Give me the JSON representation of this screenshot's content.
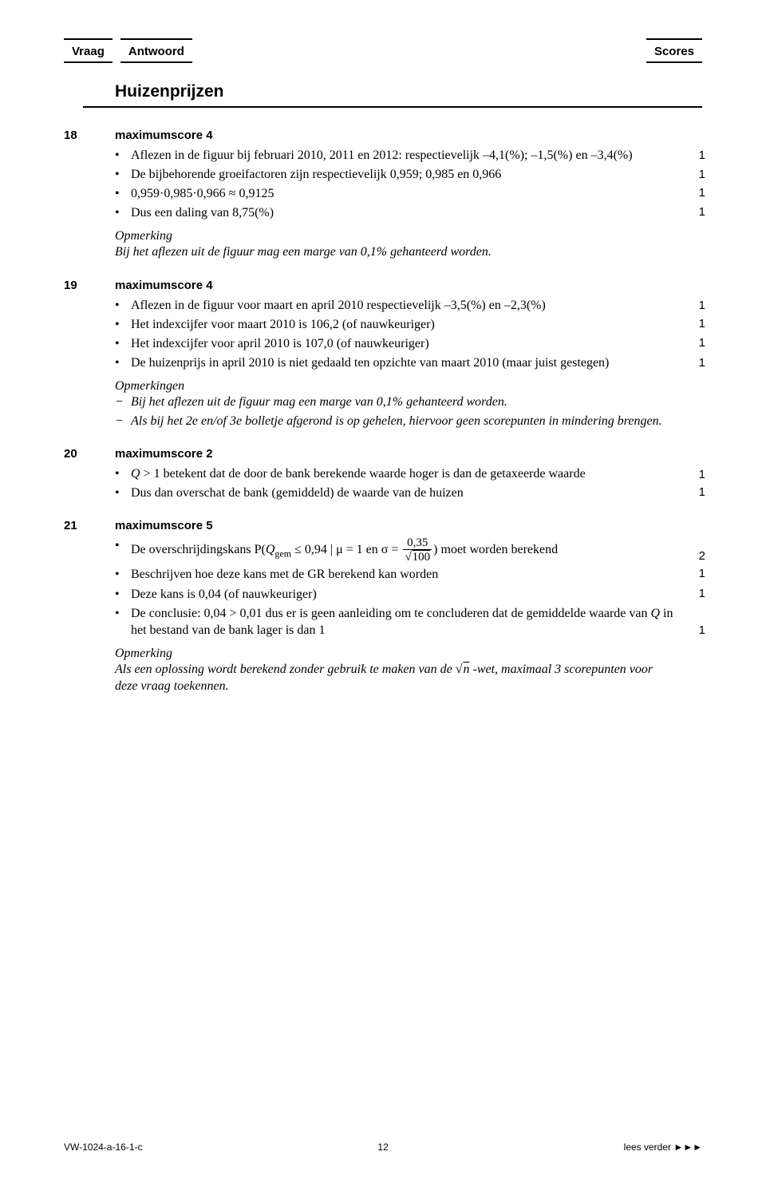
{
  "header": {
    "vraag": "Vraag",
    "antwoord": "Antwoord",
    "scores": "Scores"
  },
  "section_title": "Huizenprijzen",
  "q18": {
    "num": "18",
    "max": "maximumscore 4",
    "b1_full": "Aflezen in de figuur bij februari 2010, 2011 en 2012: respectievelijk –4,1(%); –1,5(%) en –3,4(%)",
    "b1_pts": "1",
    "b2_full": "De bijbehorende groeifactoren zijn respectievelijk 0,959; 0,985 en 0,966",
    "b2_pts": "1",
    "b3": "0,959·0,985·0,966 ≈ 0,9125",
    "b3_pts": "1",
    "b4": "Dus een daling van 8,75(%)",
    "b4_pts": "1",
    "note_head": "Opmerking",
    "note": "Bij het aflezen uit de figuur mag een marge van 0,1% gehanteerd worden."
  },
  "q19": {
    "num": "19",
    "max": "maximumscore 4",
    "b1_full": "Aflezen in de figuur voor maart en april 2010 respectievelijk –3,5(%) en –2,3(%)",
    "b1_pts": "1",
    "b2": "Het indexcijfer voor maart 2010 is 106,2 (of nauwkeuriger)",
    "b2_pts": "1",
    "b3": "Het indexcijfer voor april 2010 is 107,0 (of nauwkeuriger)",
    "b3_pts": "1",
    "b4_full": "De huizenprijs in april 2010 is niet gedaald ten opzichte van maart 2010 (maar juist gestegen)",
    "b4_pts": "1",
    "note_head": "Opmerkingen",
    "n1": "Bij het aflezen uit de figuur mag een marge van 0,1% gehanteerd worden.",
    "n2": "Als bij het 2e en/of 3e bolletje afgerond is op gehelen, hiervoor geen scorepunten in mindering brengen."
  },
  "q20": {
    "num": "20",
    "max": "maximumscore 2",
    "b1_full": "Q > 1 betekent dat de door de bank berekende waarde hoger is dan de getaxeerde waarde",
    "b1_Q": "Q",
    "b1_a": " > 1",
    "b1_b": " betekent dat de door de bank berekende waarde hoger is dan de getaxeerde waarde",
    "b1_pts": "1",
    "b2": "Dus dan overschat de bank (gemiddeld) de waarde van de huizen",
    "b2_pts": "1"
  },
  "q21": {
    "num": "21",
    "max": "maximumscore 5",
    "b1_pre": "De overschrijdingskans P(",
    "b1_Qgem": "Q",
    "b1_gem": "gem",
    "b1_mid": " ≤ 0,94 | μ = 1 en σ = ",
    "frac_num": "0,35",
    "frac_den_100": "100",
    "b1_post": ") moet worden berekend",
    "b1_pts": "2",
    "b2": "Beschrijven hoe deze kans met de GR berekend kan worden",
    "b2_pts": "1",
    "b3": "Deze kans is 0,04 (of nauwkeuriger)",
    "b3_pts": "1",
    "b4_a": "De conclusie: 0,04 > 0,01",
    "b4_b": " dus er is geen aanleiding om te concluderen dat de gemiddelde waarde van ",
    "b4_Q": "Q",
    "b4_c": " in het bestand van de bank lager is dan 1",
    "b4_pts": "1",
    "note_head": "Opmerking",
    "note_a": "Als een oplossing wordt berekend zonder gebruik te maken van de ",
    "note_n": "n",
    "note_b": " -wet, maximaal 3 scorepunten voor deze vraag toekennen."
  },
  "footer": {
    "code": "VW-1024-a-16-1-c",
    "page": "12",
    "more": "lees verder ►►►"
  }
}
